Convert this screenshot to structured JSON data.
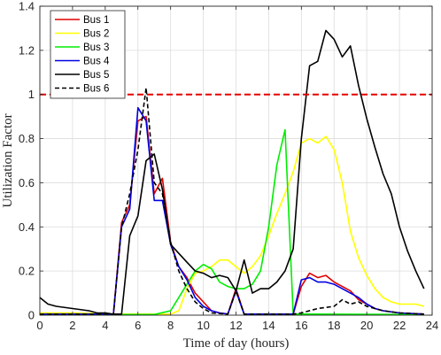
{
  "chart_data": {
    "type": "line",
    "xlabel": "Time of day (hours)",
    "ylabel": "Utilization Factor",
    "xlim": [
      0,
      24
    ],
    "ylim": [
      0,
      1.4
    ],
    "xticks": [
      "0",
      "2",
      "4",
      "6",
      "8",
      "10",
      "12",
      "14",
      "16",
      "18",
      "20",
      "22",
      "24"
    ],
    "yticks": [
      "0",
      "0.2",
      "0.4",
      "0.6",
      "0.8",
      "1",
      "1.2",
      "1.4"
    ],
    "grid": true,
    "legend_position": "top-left",
    "threshold": {
      "y": 1.0,
      "color": "#e60000",
      "style": "dashed"
    },
    "series": [
      {
        "name": "Bus 1",
        "color": "#e00000",
        "dash": "solid",
        "points": [
          [
            0,
            0.005
          ],
          [
            4.5,
            0.005
          ],
          [
            5,
            0.42
          ],
          [
            5.5,
            0.5
          ],
          [
            6,
            0.88
          ],
          [
            6.5,
            0.9
          ],
          [
            7,
            0.55
          ],
          [
            7.5,
            0.62
          ],
          [
            8,
            0.33
          ],
          [
            8.5,
            0.22
          ],
          [
            9,
            0.17
          ],
          [
            9.5,
            0.1
          ],
          [
            10,
            0.06
          ],
          [
            10.5,
            0.02
          ],
          [
            11,
            0.01
          ],
          [
            11.5,
            0.005
          ],
          [
            12,
            0.12
          ],
          [
            12.5,
            0.005
          ],
          [
            15.5,
            0.005
          ],
          [
            16,
            0.13
          ],
          [
            16.5,
            0.19
          ],
          [
            17,
            0.17
          ],
          [
            17.5,
            0.18
          ],
          [
            18,
            0.15
          ],
          [
            18.5,
            0.13
          ],
          [
            19,
            0.11
          ],
          [
            19.5,
            0.07
          ],
          [
            20,
            0.05
          ],
          [
            20.5,
            0.03
          ],
          [
            21,
            0.02
          ],
          [
            22,
            0.01
          ],
          [
            23.5,
            0.005
          ]
        ]
      },
      {
        "name": "Bus 2",
        "color": "#ffff00",
        "dash": "solid",
        "points": [
          [
            0,
            0.01
          ],
          [
            2,
            0.01
          ],
          [
            4.5,
            0.005
          ],
          [
            7,
            0.005
          ],
          [
            8,
            0.005
          ],
          [
            8.5,
            0.02
          ],
          [
            9,
            0.12
          ],
          [
            9.5,
            0.19
          ],
          [
            10,
            0.2
          ],
          [
            10.5,
            0.22
          ],
          [
            11,
            0.25
          ],
          [
            11.5,
            0.25
          ],
          [
            12,
            0.22
          ],
          [
            12.5,
            0.19
          ],
          [
            13,
            0.22
          ],
          [
            13.5,
            0.27
          ],
          [
            14,
            0.36
          ],
          [
            14.5,
            0.46
          ],
          [
            15,
            0.55
          ],
          [
            15.5,
            0.65
          ],
          [
            16,
            0.78
          ],
          [
            16.5,
            0.8
          ],
          [
            17,
            0.78
          ],
          [
            17.5,
            0.81
          ],
          [
            18,
            0.75
          ],
          [
            18.5,
            0.6
          ],
          [
            19,
            0.38
          ],
          [
            19.5,
            0.26
          ],
          [
            20,
            0.18
          ],
          [
            20.5,
            0.12
          ],
          [
            21,
            0.08
          ],
          [
            21.5,
            0.06
          ],
          [
            22,
            0.05
          ],
          [
            23,
            0.05
          ],
          [
            23.5,
            0.04
          ]
        ]
      },
      {
        "name": "Bus 3",
        "color": "#00ee00",
        "dash": "solid",
        "points": [
          [
            0,
            0.003
          ],
          [
            7,
            0.003
          ],
          [
            8,
            0.02
          ],
          [
            8.5,
            0.08
          ],
          [
            9,
            0.14
          ],
          [
            9.5,
            0.2
          ],
          [
            10,
            0.23
          ],
          [
            10.5,
            0.21
          ],
          [
            11,
            0.15
          ],
          [
            11.5,
            0.13
          ],
          [
            12,
            0.12
          ],
          [
            12.5,
            0.12
          ],
          [
            13,
            0.14
          ],
          [
            13.5,
            0.2
          ],
          [
            14,
            0.4
          ],
          [
            14.5,
            0.68
          ],
          [
            15,
            0.84
          ],
          [
            15.5,
            0.005
          ],
          [
            17,
            0.005
          ],
          [
            23.5,
            0.003
          ]
        ]
      },
      {
        "name": "Bus 4",
        "color": "#0000e0",
        "dash": "solid",
        "points": [
          [
            0,
            0.005
          ],
          [
            4.5,
            0.005
          ],
          [
            5,
            0.4
          ],
          [
            5.5,
            0.48
          ],
          [
            6,
            0.94
          ],
          [
            6.5,
            0.88
          ],
          [
            7,
            0.52
          ],
          [
            7.5,
            0.52
          ],
          [
            8,
            0.32
          ],
          [
            8.5,
            0.22
          ],
          [
            9,
            0.16
          ],
          [
            9.5,
            0.08
          ],
          [
            10,
            0.04
          ],
          [
            10.5,
            0.02
          ],
          [
            11,
            0.01
          ],
          [
            11.5,
            0.005
          ],
          [
            12,
            0.11
          ],
          [
            12.5,
            0.005
          ],
          [
            15.5,
            0.005
          ],
          [
            16,
            0.16
          ],
          [
            16.5,
            0.17
          ],
          [
            17,
            0.15
          ],
          [
            17.5,
            0.15
          ],
          [
            18,
            0.14
          ],
          [
            18.5,
            0.12
          ],
          [
            19,
            0.1
          ],
          [
            19.5,
            0.08
          ],
          [
            20,
            0.05
          ],
          [
            20.5,
            0.03
          ],
          [
            21,
            0.02
          ],
          [
            22,
            0.01
          ],
          [
            23.5,
            0.005
          ]
        ]
      },
      {
        "name": "Bus 5",
        "color": "#000000",
        "dash": "solid",
        "points": [
          [
            0,
            0.08
          ],
          [
            0.5,
            0.05
          ],
          [
            1,
            0.04
          ],
          [
            2,
            0.03
          ],
          [
            3,
            0.02
          ],
          [
            3.5,
            0.01
          ],
          [
            4,
            0.01
          ],
          [
            4.5,
            0.005
          ],
          [
            5,
            0.005
          ],
          [
            5.5,
            0.36
          ],
          [
            6,
            0.45
          ],
          [
            6.5,
            0.7
          ],
          [
            7,
            0.73
          ],
          [
            7.5,
            0.57
          ],
          [
            8,
            0.32
          ],
          [
            8.5,
            0.28
          ],
          [
            9,
            0.24
          ],
          [
            9.5,
            0.2
          ],
          [
            10,
            0.19
          ],
          [
            10.5,
            0.17
          ],
          [
            11,
            0.18
          ],
          [
            11.5,
            0.17
          ],
          [
            12,
            0.11
          ],
          [
            12.5,
            0.25
          ],
          [
            13,
            0.1
          ],
          [
            13.5,
            0.12
          ],
          [
            14,
            0.12
          ],
          [
            14.5,
            0.15
          ],
          [
            15,
            0.2
          ],
          [
            15.5,
            0.3
          ],
          [
            16,
            0.8
          ],
          [
            16.5,
            1.13
          ],
          [
            17,
            1.15
          ],
          [
            17.5,
            1.29
          ],
          [
            18,
            1.25
          ],
          [
            18.5,
            1.17
          ],
          [
            19,
            1.22
          ],
          [
            19.5,
            1.04
          ],
          [
            20,
            0.89
          ],
          [
            20.5,
            0.76
          ],
          [
            21,
            0.64
          ],
          [
            21.5,
            0.55
          ],
          [
            22,
            0.4
          ],
          [
            22.5,
            0.29
          ],
          [
            23,
            0.2
          ],
          [
            23.5,
            0.12
          ]
        ]
      },
      {
        "name": "Bus 6",
        "color": "#000000",
        "dash": "dashed",
        "points": [
          [
            0,
            0.005
          ],
          [
            4.5,
            0.005
          ],
          [
            5,
            0.4
          ],
          [
            5.5,
            0.55
          ],
          [
            6,
            0.75
          ],
          [
            6.5,
            1.03
          ],
          [
            7,
            0.6
          ],
          [
            7.5,
            0.55
          ],
          [
            8,
            0.33
          ],
          [
            8.5,
            0.2
          ],
          [
            9,
            0.12
          ],
          [
            9.5,
            0.06
          ],
          [
            10,
            0.03
          ],
          [
            10.5,
            0.01
          ],
          [
            11.5,
            0.005
          ],
          [
            12,
            0.11
          ],
          [
            12.5,
            0.005
          ],
          [
            15.5,
            0.005
          ],
          [
            16,
            0.01
          ],
          [
            17,
            0.03
          ],
          [
            18,
            0.04
          ],
          [
            18.5,
            0.07
          ],
          [
            19,
            0.05
          ],
          [
            19.5,
            0.06
          ],
          [
            20,
            0.04
          ],
          [
            21,
            0.02
          ],
          [
            22,
            0.01
          ],
          [
            23.5,
            0.005
          ]
        ]
      }
    ]
  }
}
